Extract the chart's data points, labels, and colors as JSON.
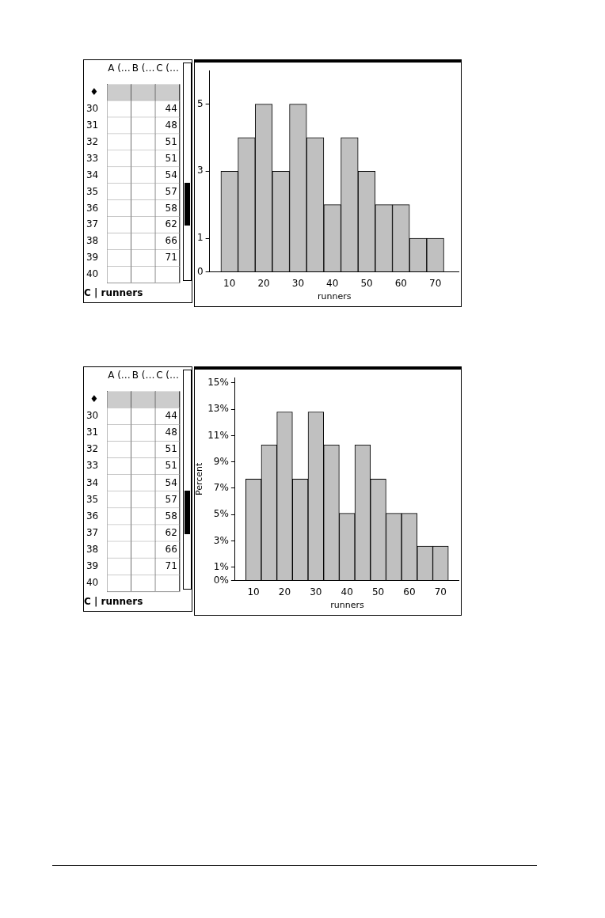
{
  "chart_data": [
    {
      "type": "heatmap",
      "title": "C | runners",
      "categories": [
        "A (…",
        "B (…",
        "C (…"
      ],
      "y_categories": [
        "♦",
        "30",
        "31",
        "32",
        "33",
        "34",
        "35",
        "36",
        "37",
        "38",
        "39",
        "40"
      ],
      "cells": [
        [
          null,
          null,
          null
        ],
        [
          null,
          null,
          44
        ],
        [
          null,
          null,
          48
        ],
        [
          null,
          null,
          51
        ],
        [
          null,
          null,
          51
        ],
        [
          null,
          null,
          54
        ],
        [
          null,
          null,
          57
        ],
        [
          null,
          null,
          58
        ],
        [
          null,
          null,
          62
        ],
        [
          null,
          null,
          66
        ],
        [
          null,
          null,
          71
        ],
        [
          null,
          null,
          null
        ]
      ],
      "cell_labels": [
        [
          null,
          null,
          null
        ],
        [
          null,
          null,
          "44"
        ],
        [
          null,
          null,
          "48"
        ],
        [
          null,
          null,
          "51"
        ],
        [
          null,
          null,
          "51"
        ],
        [
          null,
          null,
          "54"
        ],
        [
          null,
          null,
          "57"
        ],
        [
          null,
          null,
          "58"
        ],
        [
          null,
          null,
          "62"
        ],
        [
          null,
          null,
          "66"
        ],
        [
          null,
          null,
          "71"
        ],
        [
          null,
          null,
          null
        ]
      ]
    },
    {
      "type": "histogram",
      "xlabel": "runners",
      "bins": [
        7.5,
        12.5,
        17.5,
        22.5,
        27.5,
        32.5,
        37.5,
        42.5,
        47.5,
        52.5,
        57.5,
        62.5,
        67.5,
        72.5
      ],
      "values": [
        3,
        4,
        5,
        3,
        5,
        4,
        2,
        4,
        3,
        2,
        2,
        1,
        1
      ],
      "color": "#c0c0c0",
      "xlim": [
        4.2,
        77
      ],
      "xticks": [
        10,
        20,
        30,
        40,
        50,
        60,
        70
      ],
      "ylim": [
        0,
        6
      ],
      "yticks": [
        0,
        1,
        3,
        5
      ],
      "grid": false,
      "legend": false
    },
    {
      "type": "heatmap",
      "title": "C | runners",
      "categories": [
        "A (…",
        "B (…",
        "C (…"
      ],
      "y_categories": [
        "♦",
        "30",
        "31",
        "32",
        "33",
        "34",
        "35",
        "36",
        "37",
        "38",
        "39",
        "40"
      ],
      "cells": [
        [
          null,
          null,
          null
        ],
        [
          null,
          null,
          44
        ],
        [
          null,
          null,
          48
        ],
        [
          null,
          null,
          51
        ],
        [
          null,
          null,
          51
        ],
        [
          null,
          null,
          54
        ],
        [
          null,
          null,
          57
        ],
        [
          null,
          null,
          58
        ],
        [
          null,
          null,
          62
        ],
        [
          null,
          null,
          66
        ],
        [
          null,
          null,
          71
        ],
        [
          null,
          null,
          null
        ]
      ],
      "cell_labels": [
        [
          null,
          null,
          null
        ],
        [
          null,
          null,
          "44"
        ],
        [
          null,
          null,
          "48"
        ],
        [
          null,
          null,
          "51"
        ],
        [
          null,
          null,
          "51"
        ],
        [
          null,
          null,
          "54"
        ],
        [
          null,
          null,
          "57"
        ],
        [
          null,
          null,
          "58"
        ],
        [
          null,
          null,
          "62"
        ],
        [
          null,
          null,
          "66"
        ],
        [
          null,
          null,
          "71"
        ],
        [
          null,
          null,
          null
        ]
      ]
    },
    {
      "type": "histogram",
      "xlabel": "runners",
      "ylabel": "Percent",
      "bins": [
        7.5,
        12.5,
        17.5,
        22.5,
        27.5,
        32.5,
        37.5,
        42.5,
        47.5,
        52.5,
        57.5,
        62.5,
        67.5,
        72.5
      ],
      "values": [
        7.7,
        10.3,
        12.8,
        7.7,
        12.8,
        10.3,
        5.1,
        10.3,
        7.7,
        5.1,
        5.1,
        2.6,
        2.6
      ],
      "color": "#c0c0c0",
      "xlim": [
        4.1,
        76
      ],
      "xticks": [
        10,
        20,
        30,
        40,
        50,
        60,
        70
      ],
      "ylim": [
        0,
        15.4
      ],
      "yticks": [
        {
          "value": 0,
          "label": "0%"
        },
        {
          "value": 1,
          "label": "1%"
        },
        {
          "value": 3,
          "label": "3%"
        },
        {
          "value": 5,
          "label": "5%"
        },
        {
          "value": 7,
          "label": "7%"
        },
        {
          "value": 9,
          "label": "9%"
        },
        {
          "value": 11,
          "label": "11%"
        },
        {
          "value": 13,
          "label": "13%"
        },
        {
          "value": 15,
          "label": "15%"
        }
      ],
      "grid": false,
      "legend": false
    }
  ]
}
